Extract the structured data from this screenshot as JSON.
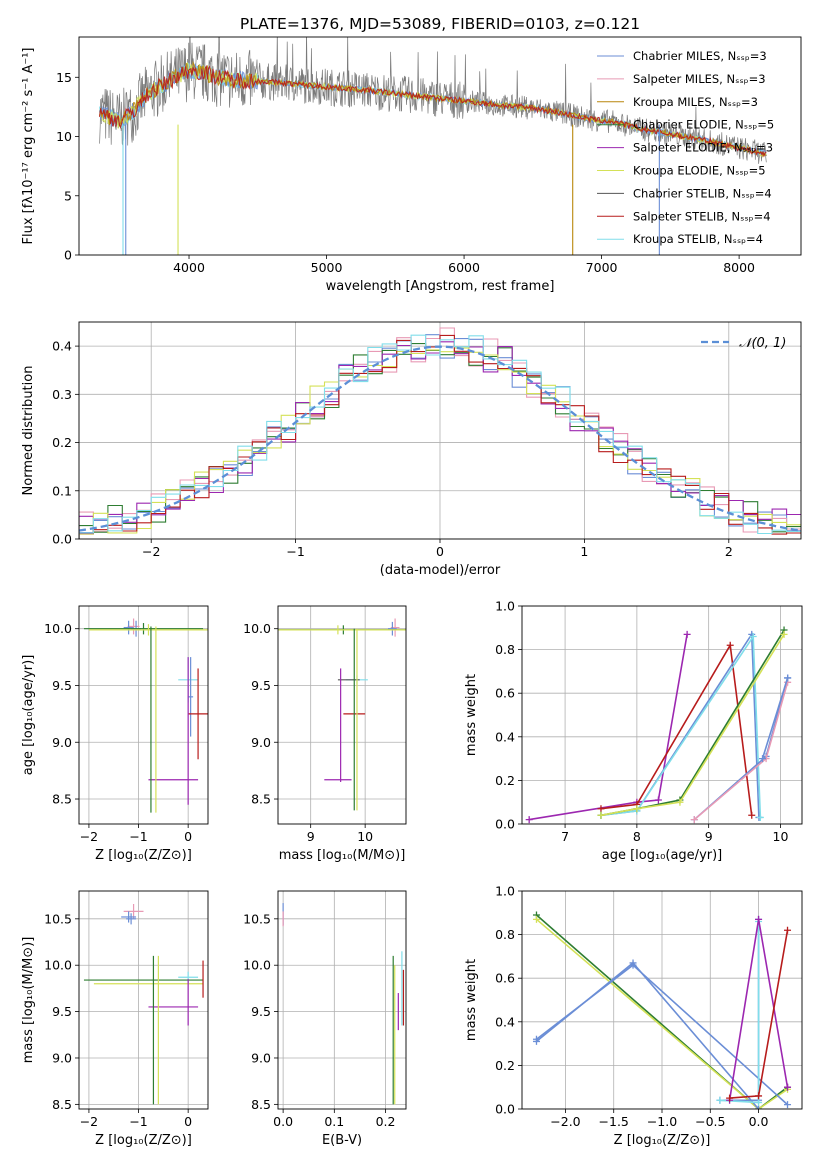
{
  "title": "PLATE=1376, MJD=53089, FIBERID=0103, z=0.121",
  "series_colors": [
    "#6b8ed6",
    "#e89ab5",
    "#b8860b",
    "#2e7d32",
    "#9c27b0",
    "#d4e157",
    "#555555",
    "#b71c1c",
    "#80deea"
  ],
  "accent_colors": {
    "orange": "#e8743b",
    "gauss": "#5b8fd6"
  },
  "chart_data": [
    {
      "id": "spectrum",
      "type": "line",
      "xlabel": "wavelength [Angstrom, rest frame]",
      "ylabel": "Flux [fλ10⁻¹⁷ erg cm⁻² s⁻¹ A⁻¹]",
      "xlim": [
        3200,
        8450
      ],
      "ylim": [
        0,
        18.4
      ],
      "xticks": [
        4000,
        5000,
        6000,
        7000,
        8000
      ],
      "yticks": [
        0,
        5,
        10,
        15
      ],
      "grid": false,
      "legend_position": "top-right",
      "legend": [
        "Chabrier MILES, Nₛₛₚ=3",
        "Salpeter MILES, Nₛₛₚ=3",
        "Kroupa MILES, Nₛₛₚ=3",
        "Chabrier ELODIE, Nₛₛₚ=5",
        "Salpeter ELODIE, Nₛₛₚ=3",
        "Kroupa ELODIE, Nₛₛₚ=5",
        "Chabrier STELIB, Nₛₛₚ=4",
        "Salpeter STELIB, Nₛₛₚ=4",
        "Kroupa STELIB, Nₛₛₚ=4"
      ],
      "continuum_x": [
        3350,
        3500,
        3600,
        3700,
        3800,
        3900,
        4000,
        4100,
        4200,
        4300,
        4500,
        4700,
        5000,
        5300,
        5600,
        6000,
        6300,
        6500,
        6700,
        6900,
        7100,
        7300,
        7500,
        7700,
        7900,
        8100,
        8200
      ],
      "continuum_y": [
        12.0,
        11.3,
        12.2,
        13.6,
        14.3,
        15.0,
        15.6,
        15.4,
        15.1,
        14.8,
        14.7,
        14.5,
        14.2,
        13.9,
        13.5,
        13.0,
        12.6,
        12.4,
        12.0,
        11.5,
        11.2,
        10.6,
        10.2,
        9.8,
        9.3,
        8.8,
        8.5
      ]
    },
    {
      "id": "residuals",
      "type": "step",
      "xlabel": "(data-model)/error",
      "ylabel": "Normed distribution",
      "xlim": [
        -2.5,
        2.5
      ],
      "ylim": [
        0,
        0.45
      ],
      "xticks": [
        -2,
        -1,
        0,
        1,
        2
      ],
      "yticks": [
        0.0,
        0.1,
        0.2,
        0.3,
        0.4
      ],
      "grid": true,
      "legend_position": "top-right",
      "legend": [
        "𝒩(0, 1)"
      ],
      "bin_width": 0.1
    },
    {
      "id": "age_vs_Z",
      "type": "errorbar",
      "xlabel": "Z [log₁₀(Z/Z⊙)]",
      "ylabel": "age  [log₁₀(age/yr)]",
      "xlim": [
        -2.2,
        0.4
      ],
      "ylim": [
        8.28,
        10.2
      ],
      "xticks": [
        -2,
        -1,
        0
      ],
      "yticks": [
        8.5,
        9.0,
        9.5,
        10.0
      ],
      "grid": true,
      "points": [
        {
          "x": -1.1,
          "y": 10.02,
          "xerr": 0.12,
          "yerr": 0.07,
          "c": 1
        },
        {
          "x": -1.2,
          "y": 10.01,
          "xerr": 0.1,
          "yerr": 0.06,
          "c": 0
        },
        {
          "x": -1.05,
          "y": 10.0,
          "xerr": 0.1,
          "yerr": 0.07,
          "c": 10
        },
        {
          "x": -0.9,
          "y": 10.0,
          "xerr": 1.2,
          "yerr": 0.05,
          "c": 3
        },
        {
          "x": -0.8,
          "y": 9.99,
          "xerr": 1.2,
          "yerr": 0.05,
          "c": 5
        },
        {
          "x": 0.0,
          "y": 9.55,
          "xerr": 0.2,
          "yerr": 0.2,
          "c": 8
        },
        {
          "x": 0.05,
          "y": 9.4,
          "xerr": 0.05,
          "yerr": 0.35,
          "c": 0
        },
        {
          "x": 0.2,
          "y": 9.25,
          "xerr": 0.2,
          "yerr": 0.4,
          "c": 7
        },
        {
          "x": -0.3,
          "y": 8.67,
          "xerr": 0.5,
          "yerr": 0.0,
          "c": 4
        },
        {
          "x": 0.0,
          "y": 9.1,
          "xerr": 0.0,
          "yerr": 0.65,
          "c": 4
        },
        {
          "x": -0.75,
          "y": 9.2,
          "xerr": 0.0,
          "yerr": 0.82,
          "c": 3
        },
        {
          "x": -0.65,
          "y": 9.2,
          "xerr": 0.0,
          "yerr": 0.82,
          "c": 5
        }
      ]
    },
    {
      "id": "age_vs_mass",
      "type": "errorbar",
      "xlabel": "mass [log₁₀(M/M⊙)]",
      "ylabel": "",
      "xlim": [
        8.4,
        10.75
      ],
      "ylim": [
        8.28,
        10.2
      ],
      "xticks": [
        9,
        10
      ],
      "yticks": [
        8.5,
        9.0,
        9.5,
        10.0
      ],
      "grid": true,
      "points": [
        {
          "x": 10.55,
          "y": 10.01,
          "xerr": 0.08,
          "yerr": 0.08,
          "c": 1
        },
        {
          "x": 10.5,
          "y": 10.0,
          "xerr": 0.08,
          "yerr": 0.06,
          "c": 10
        },
        {
          "x": 9.6,
          "y": 9.99,
          "xerr": 1.6,
          "yerr": 0.04,
          "c": 3
        },
        {
          "x": 9.5,
          "y": 9.99,
          "xerr": 1.5,
          "yerr": 0.04,
          "c": 5
        },
        {
          "x": 9.85,
          "y": 9.55,
          "xerr": 0.2,
          "yerr": 0.04,
          "c": 8
        },
        {
          "x": 9.7,
          "y": 9.55,
          "xerr": 0.2,
          "yerr": 0.0,
          "c": 6
        },
        {
          "x": 9.8,
          "y": 9.25,
          "xerr": 0.2,
          "yerr": 0.0,
          "c": 7
        },
        {
          "x": 9.8,
          "y": 9.2,
          "xerr": 0.0,
          "yerr": 0.8,
          "c": 3
        },
        {
          "x": 9.85,
          "y": 9.2,
          "xerr": 0.0,
          "yerr": 0.8,
          "c": 5
        },
        {
          "x": 9.5,
          "y": 8.67,
          "xerr": 0.25,
          "yerr": 0.0,
          "c": 4
        },
        {
          "x": 9.55,
          "y": 9.15,
          "xerr": 0.0,
          "yerr": 0.5,
          "c": 4
        }
      ]
    },
    {
      "id": "weight_vs_age",
      "type": "line",
      "xlabel": "age  [log₁₀(age/yr)]",
      "ylabel": "mass weight",
      "xlim": [
        6.4,
        10.3
      ],
      "ylim": [
        0,
        1.0
      ],
      "xticks": [
        7,
        8,
        9,
        10
      ],
      "yticks": [
        0.0,
        0.2,
        0.4,
        0.6,
        0.8,
        1.0
      ],
      "grid": true,
      "series": [
        {
          "c": 4,
          "x": [
            6.5,
            8.0,
            8.3,
            8.7
          ],
          "y": [
            0.02,
            0.1,
            0.11,
            0.87
          ]
        },
        {
          "c": 7,
          "x": [
            7.5,
            8.0,
            9.3,
            9.6
          ],
          "y": [
            0.07,
            0.09,
            0.82,
            0.04
          ]
        },
        {
          "c": 0,
          "x": [
            7.5,
            8.0,
            9.6,
            9.7
          ],
          "y": [
            0.04,
            0.06,
            0.87,
            0.03
          ]
        },
        {
          "c": 8,
          "x": [
            7.5,
            8.0,
            9.62,
            9.72
          ],
          "y": [
            0.04,
            0.06,
            0.86,
            0.03
          ]
        },
        {
          "c": 3,
          "x": [
            7.5,
            8.0,
            8.6,
            10.05
          ],
          "y": [
            0.04,
            0.07,
            0.11,
            0.89
          ]
        },
        {
          "c": 5,
          "x": [
            7.5,
            8.0,
            8.6,
            10.05
          ],
          "y": [
            0.04,
            0.07,
            0.1,
            0.87
          ]
        },
        {
          "c": 10,
          "x": [
            8.8,
            9.8,
            10.1
          ],
          "y": [
            0.02,
            0.31,
            0.67
          ]
        },
        {
          "c": 1,
          "x": [
            8.8,
            9.8,
            10.1
          ],
          "y": [
            0.02,
            0.3,
            0.65
          ]
        },
        {
          "c": 0,
          "x": [
            9.75,
            10.1
          ],
          "y": [
            0.3,
            0.67
          ]
        }
      ]
    },
    {
      "id": "mass_vs_Z",
      "type": "errorbar",
      "xlabel": "Z [log₁₀(Z/Z⊙)]",
      "ylabel": "mass [log₁₀(M/M⊙)]",
      "xlim": [
        -2.2,
        0.4
      ],
      "ylim": [
        8.45,
        10.8
      ],
      "xticks": [
        -2,
        -1,
        0
      ],
      "yticks": [
        8.5,
        9.0,
        9.5,
        10.0,
        10.5
      ],
      "grid": true,
      "points": [
        {
          "x": -1.1,
          "y": 10.58,
          "xerr": 0.2,
          "yerr": 0.08,
          "c": 1
        },
        {
          "x": -1.2,
          "y": 10.52,
          "xerr": 0.15,
          "yerr": 0.06,
          "c": 0
        },
        {
          "x": -1.15,
          "y": 10.5,
          "xerr": 0.1,
          "yerr": 0.06,
          "c": 10
        },
        {
          "x": 0.0,
          "y": 9.87,
          "xerr": 0.2,
          "yerr": 0.06,
          "c": 8
        },
        {
          "x": -0.9,
          "y": 9.84,
          "xerr": 1.2,
          "yerr": 0.0,
          "c": 3
        },
        {
          "x": -0.8,
          "y": 9.8,
          "xerr": 1.1,
          "yerr": 0.0,
          "c": 5
        },
        {
          "x": 0.3,
          "y": 9.85,
          "xerr": 0.0,
          "yerr": 0.2,
          "c": 7
        },
        {
          "x": -0.3,
          "y": 9.55,
          "xerr": 0.5,
          "yerr": 0.0,
          "c": 4
        },
        {
          "x": 0.0,
          "y": 9.6,
          "xerr": 0.0,
          "yerr": 0.25,
          "c": 4
        },
        {
          "x": -0.7,
          "y": 9.3,
          "xerr": 0.0,
          "yerr": 0.8,
          "c": 3
        },
        {
          "x": -0.6,
          "y": 9.3,
          "xerr": 0.0,
          "yerr": 0.8,
          "c": 5
        }
      ]
    },
    {
      "id": "mass_vs_ebv",
      "type": "errorbar",
      "xlabel": "E(B-V)",
      "ylabel": "",
      "xlim": [
        -0.01,
        0.24
      ],
      "ylim": [
        8.45,
        10.8
      ],
      "xticks": [
        0.0,
        0.1,
        0.2
      ],
      "yticks": [
        8.5,
        9.0,
        9.5,
        10.0,
        10.5
      ],
      "grid": true,
      "points": [
        {
          "x": 0.0,
          "y": 10.55,
          "xerr": 0.0,
          "yerr": 0.12,
          "c": 10
        },
        {
          "x": 0.0,
          "y": 10.5,
          "xerr": 0.0,
          "yerr": 0.08,
          "c": 1
        },
        {
          "x": 0.215,
          "y": 9.3,
          "xerr": 0.0,
          "yerr": 0.8,
          "c": 3
        },
        {
          "x": 0.218,
          "y": 9.25,
          "xerr": 0.0,
          "yerr": 0.75,
          "c": 5
        },
        {
          "x": 0.225,
          "y": 9.5,
          "xerr": 0.0,
          "yerr": 0.2,
          "c": 4
        },
        {
          "x": 0.232,
          "y": 9.75,
          "xerr": 0.0,
          "yerr": 0.4,
          "c": 8
        },
        {
          "x": 0.235,
          "y": 9.65,
          "xerr": 0.0,
          "yerr": 0.3,
          "c": 7
        }
      ]
    },
    {
      "id": "weight_vs_Z",
      "type": "line",
      "xlabel": "Z [log₁₀(Z/Z⊙)]",
      "ylabel": "mass weight",
      "xlim": [
        -2.45,
        0.45
      ],
      "ylim": [
        0,
        1.0
      ],
      "xticks": [
        -2.0,
        -1.5,
        -1.0,
        -0.5,
        0.0
      ],
      "yticks": [
        0.0,
        0.2,
        0.4,
        0.6,
        0.8,
        1.0
      ],
      "grid": true,
      "series": [
        {
          "c": 3,
          "x": [
            -2.3,
            0.0,
            0.3
          ],
          "y": [
            0.89,
            0.0,
            0.1
          ]
        },
        {
          "c": 5,
          "x": [
            -2.3,
            0.0,
            0.3
          ],
          "y": [
            0.87,
            0.0,
            0.09
          ]
        },
        {
          "c": 0,
          "x": [
            -2.3,
            -1.3,
            0.0
          ],
          "y": [
            0.31,
            0.67,
            0.0
          ]
        },
        {
          "c": 10,
          "x": [
            -2.3,
            -1.3,
            0.3
          ],
          "y": [
            0.32,
            0.66,
            0.02
          ]
        },
        {
          "c": 0,
          "x": [
            -0.4,
            0.0,
            0.0
          ],
          "y": [
            0.04,
            0.04,
            0.87
          ]
        },
        {
          "c": 8,
          "x": [
            -0.4,
            0.0,
            0.0
          ],
          "y": [
            0.04,
            0.03,
            0.86
          ]
        },
        {
          "c": 4,
          "x": [
            -0.3,
            0.0,
            0.3
          ],
          "y": [
            0.04,
            0.87,
            0.1
          ]
        },
        {
          "c": 7,
          "x": [
            -0.3,
            0.0,
            0.3
          ],
          "y": [
            0.05,
            0.06,
            0.82
          ]
        }
      ]
    }
  ]
}
